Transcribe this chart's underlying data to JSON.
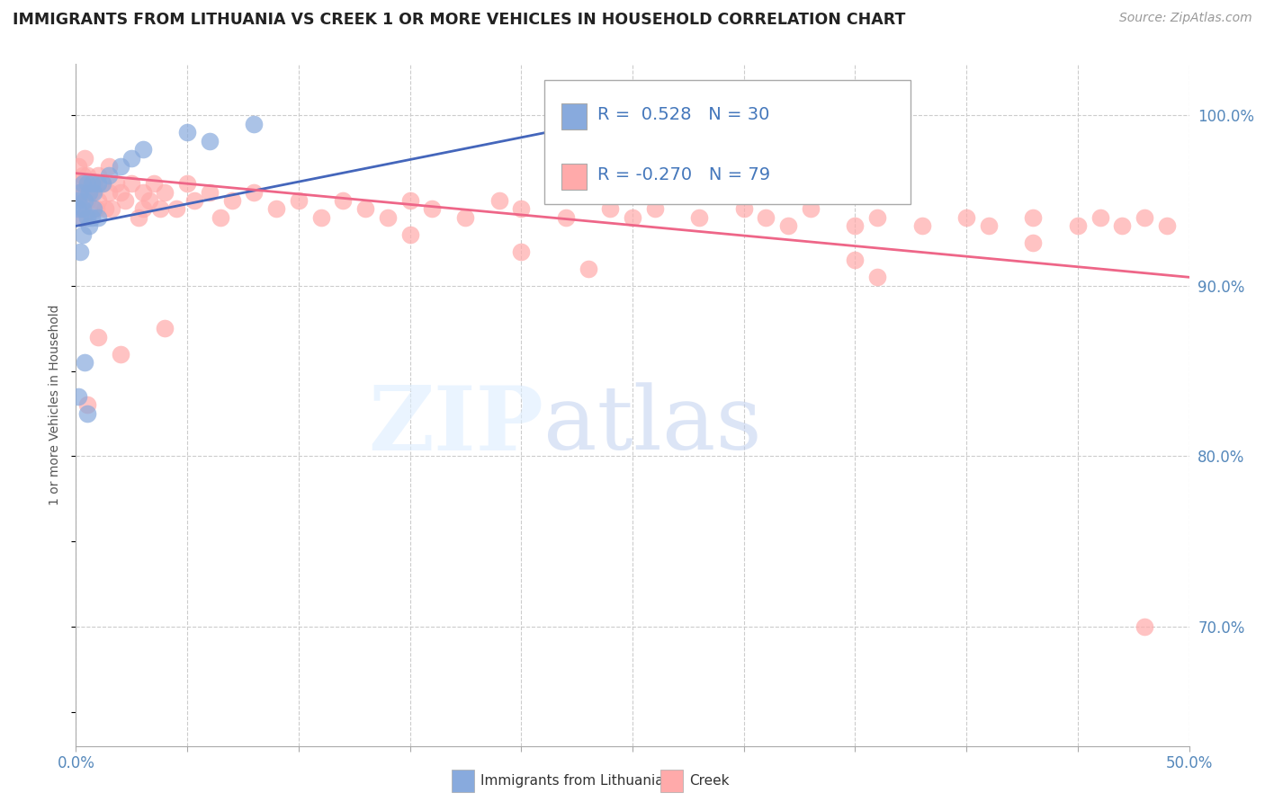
{
  "title": "IMMIGRANTS FROM LITHUANIA VS CREEK 1 OR MORE VEHICLES IN HOUSEHOLD CORRELATION CHART",
  "source": "Source: ZipAtlas.com",
  "ylabel": "1 or more Vehicles in Household",
  "xlim": [
    0.0,
    0.5
  ],
  "ylim": [
    0.63,
    1.03
  ],
  "xticks": [
    0.0,
    0.05,
    0.1,
    0.15,
    0.2,
    0.25,
    0.3,
    0.35,
    0.4,
    0.45,
    0.5
  ],
  "ytick_vals": [
    0.7,
    0.8,
    0.9,
    1.0
  ],
  "blue_R": 0.528,
  "blue_N": 30,
  "pink_R": -0.27,
  "pink_N": 79,
  "blue_color": "#88AADD",
  "pink_color": "#FFAAAA",
  "blue_line_color": "#4466BB",
  "pink_line_color": "#EE6688",
  "watermark_zip": "ZIP",
  "watermark_atlas": "atlas",
  "watermark_zip_color": "#DDDDEE",
  "watermark_atlas_color": "#BBCCDD",
  "legend_label_blue": "Immigrants from Lithuania",
  "legend_label_pink": "Creek",
  "blue_scatter_x": [
    0.001,
    0.001,
    0.001,
    0.002,
    0.002,
    0.002,
    0.003,
    0.003,
    0.003,
    0.004,
    0.004,
    0.005,
    0.005,
    0.005,
    0.006,
    0.006,
    0.007,
    0.007,
    0.008,
    0.008,
    0.01,
    0.01,
    0.012,
    0.015,
    0.02,
    0.025,
    0.03,
    0.05,
    0.06,
    0.08
  ],
  "blue_scatter_y": [
    0.945,
    0.95,
    0.835,
    0.955,
    0.94,
    0.92,
    0.96,
    0.945,
    0.93,
    0.95,
    0.855,
    0.96,
    0.94,
    0.825,
    0.955,
    0.935,
    0.96,
    0.94,
    0.955,
    0.945,
    0.96,
    0.94,
    0.96,
    0.965,
    0.97,
    0.975,
    0.98,
    0.99,
    0.985,
    0.995
  ],
  "pink_scatter_x": [
    0.001,
    0.001,
    0.002,
    0.003,
    0.003,
    0.004,
    0.005,
    0.005,
    0.006,
    0.007,
    0.008,
    0.009,
    0.01,
    0.01,
    0.012,
    0.013,
    0.015,
    0.015,
    0.016,
    0.018,
    0.02,
    0.022,
    0.025,
    0.028,
    0.03,
    0.03,
    0.033,
    0.035,
    0.038,
    0.04,
    0.045,
    0.05,
    0.053,
    0.06,
    0.065,
    0.07,
    0.08,
    0.09,
    0.1,
    0.11,
    0.12,
    0.13,
    0.14,
    0.15,
    0.16,
    0.175,
    0.19,
    0.2,
    0.22,
    0.24,
    0.25,
    0.26,
    0.28,
    0.3,
    0.31,
    0.32,
    0.33,
    0.35,
    0.36,
    0.38,
    0.4,
    0.41,
    0.43,
    0.45,
    0.46,
    0.47,
    0.48,
    0.49,
    0.005,
    0.01,
    0.02,
    0.04,
    0.15,
    0.2,
    0.23,
    0.35,
    0.43,
    0.36,
    0.48
  ],
  "pink_scatter_y": [
    0.97,
    0.955,
    0.96,
    0.965,
    0.94,
    0.975,
    0.95,
    0.965,
    0.96,
    0.955,
    0.96,
    0.945,
    0.965,
    0.95,
    0.96,
    0.945,
    0.97,
    0.955,
    0.945,
    0.96,
    0.955,
    0.95,
    0.96,
    0.94,
    0.955,
    0.945,
    0.95,
    0.96,
    0.945,
    0.955,
    0.945,
    0.96,
    0.95,
    0.955,
    0.94,
    0.95,
    0.955,
    0.945,
    0.95,
    0.94,
    0.95,
    0.945,
    0.94,
    0.95,
    0.945,
    0.94,
    0.95,
    0.945,
    0.94,
    0.945,
    0.94,
    0.945,
    0.94,
    0.945,
    0.94,
    0.935,
    0.945,
    0.935,
    0.94,
    0.935,
    0.94,
    0.935,
    0.94,
    0.935,
    0.94,
    0.935,
    0.94,
    0.935,
    0.83,
    0.87,
    0.86,
    0.875,
    0.93,
    0.92,
    0.91,
    0.915,
    0.925,
    0.905,
    0.7
  ],
  "blue_trend_x": [
    0.0,
    0.25
  ],
  "blue_trend_y": [
    0.935,
    1.0
  ],
  "pink_trend_x": [
    0.0,
    0.5
  ],
  "pink_trend_y": [
    0.966,
    0.905
  ]
}
